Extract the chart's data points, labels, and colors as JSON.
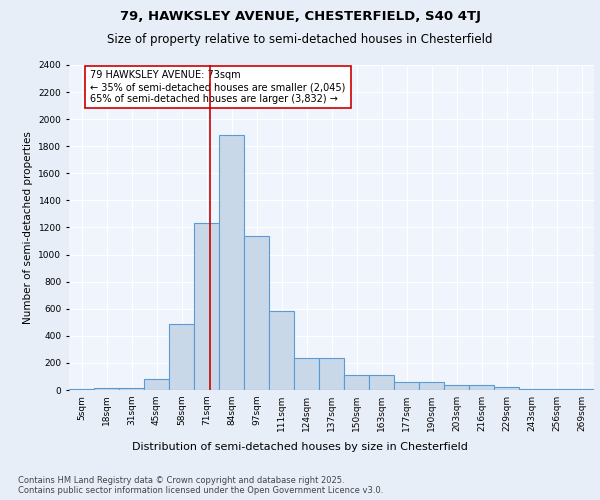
{
  "title1": "79, HAWKSLEY AVENUE, CHESTERFIELD, S40 4TJ",
  "title2": "Size of property relative to semi-detached houses in Chesterfield",
  "xlabel": "Distribution of semi-detached houses by size in Chesterfield",
  "ylabel": "Number of semi-detached properties",
  "bin_labels": [
    "5sqm",
    "18sqm",
    "31sqm",
    "45sqm",
    "58sqm",
    "71sqm",
    "84sqm",
    "97sqm",
    "111sqm",
    "124sqm",
    "137sqm",
    "150sqm",
    "163sqm",
    "177sqm",
    "190sqm",
    "203sqm",
    "216sqm",
    "229sqm",
    "243sqm",
    "256sqm",
    "269sqm"
  ],
  "bin_values": [
    5,
    15,
    15,
    80,
    490,
    1230,
    1880,
    1140,
    580,
    240,
    240,
    110,
    110,
    60,
    60,
    40,
    40,
    20,
    5,
    5,
    5
  ],
  "bar_color": "#c8d8e8",
  "bar_edge_color": "#5b9bd5",
  "property_sqm": 73,
  "annotation_text": "79 HAWKSLEY AVENUE: 73sqm\n← 35% of semi-detached houses are smaller (2,045)\n65% of semi-detached houses are larger (3,832) →",
  "red_line_color": "#cc0000",
  "annotation_box_color": "#ffffff",
  "annotation_box_edge": "#cc0000",
  "background_color": "#e8eef8",
  "plot_background": "#f0f4fc",
  "grid_color": "#ffffff",
  "ylim": [
    0,
    2400
  ],
  "yticks": [
    0,
    200,
    400,
    600,
    800,
    1000,
    1200,
    1400,
    1600,
    1800,
    2000,
    2200,
    2400
  ],
  "footnote": "Contains HM Land Registry data © Crown copyright and database right 2025.\nContains public sector information licensed under the Open Government Licence v3.0.",
  "title1_fontsize": 9.5,
  "title2_fontsize": 8.5,
  "xlabel_fontsize": 8,
  "ylabel_fontsize": 7.5,
  "tick_fontsize": 6.5,
  "annotation_fontsize": 7,
  "footnote_fontsize": 6
}
